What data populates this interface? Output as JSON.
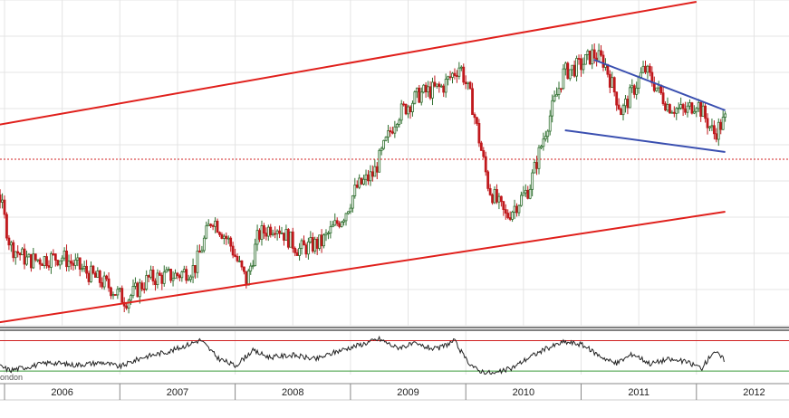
{
  "chart_data": {
    "type": "candlestick",
    "x_labels": [
      "2006",
      "2007",
      "2008",
      "2009",
      "2010",
      "2011",
      "2012"
    ],
    "x_range": [
      2005.5,
      2012.25
    ],
    "grid": true,
    "colors": {
      "up_candle": "#2f6f2f",
      "down_candle": "#c0181c",
      "channel_line": "#e0201c",
      "wedge_line": "#3a4fb0",
      "support_dotted": "#d02020",
      "oscillator": "#222222",
      "osc_upper": "#d02020",
      "osc_lower": "#3a9a3a",
      "grid": "#e4e4e4"
    },
    "price_keypoints": [
      [
        2005.5,
        0.8
      ],
      [
        2005.6,
        0.9
      ],
      [
        2005.75,
        0.84
      ],
      [
        2005.85,
        0.83
      ],
      [
        2005.95,
        0.77
      ],
      [
        2006.05,
        0.62
      ],
      [
        2006.2,
        0.58
      ],
      [
        2006.5,
        0.59
      ],
      [
        2006.75,
        0.54
      ],
      [
        2006.9,
        0.51
      ],
      [
        2007.05,
        0.47
      ],
      [
        2007.25,
        0.53
      ],
      [
        2007.5,
        0.54
      ],
      [
        2007.65,
        0.56
      ],
      [
        2007.8,
        0.7
      ],
      [
        2007.95,
        0.63
      ],
      [
        2008.1,
        0.52
      ],
      [
        2008.2,
        0.65
      ],
      [
        2008.35,
        0.68
      ],
      [
        2008.55,
        0.61
      ],
      [
        2008.75,
        0.63
      ],
      [
        2008.95,
        0.71
      ],
      [
        2009.05,
        0.78
      ],
      [
        2009.2,
        0.82
      ],
      [
        2009.4,
        0.98
      ],
      [
        2009.6,
        1.04
      ],
      [
        2009.8,
        1.06
      ],
      [
        2009.95,
        1.12
      ],
      [
        2010.05,
        1.02
      ],
      [
        2010.2,
        0.78
      ],
      [
        2010.35,
        0.7
      ],
      [
        2010.55,
        0.78
      ],
      [
        2010.7,
        0.95
      ],
      [
        2010.85,
        1.1
      ],
      [
        2011.0,
        1.12
      ],
      [
        2011.1,
        1.15
      ],
      [
        2011.2,
        1.13
      ],
      [
        2011.35,
        0.99
      ],
      [
        2011.55,
        1.11
      ],
      [
        2011.75,
        1.01
      ],
      [
        2011.9,
        0.99
      ],
      [
        2012.0,
        1.02
      ],
      [
        2012.15,
        0.93
      ],
      [
        2012.25,
        0.97
      ]
    ],
    "y_range": [
      0.4,
      1.3
    ],
    "trendlines": [
      {
        "kind": "channel_upper",
        "points": [
          [
            2005.59,
            0.935
          ],
          [
            2012.0,
            1.295
          ]
        ]
      },
      {
        "kind": "channel_lower",
        "points": [
          [
            2005.66,
            0.395
          ],
          [
            2012.25,
            0.715
          ]
        ]
      },
      {
        "kind": "wedge_upper",
        "points": [
          [
            2011.11,
            1.135
          ],
          [
            2012.25,
            0.995
          ]
        ]
      },
      {
        "kind": "wedge_lower",
        "points": [
          [
            2010.86,
            0.94
          ],
          [
            2012.25,
            0.88
          ]
        ]
      }
    ],
    "reference_lines": [
      {
        "kind": "support_dotted",
        "y": 0.86
      }
    ],
    "oscillator": {
      "upper_level": 0.78,
      "lower_level": 0.08,
      "keypoints": [
        [
          2005.5,
          0.82
        ],
        [
          2005.55,
          1.0
        ],
        [
          2005.7,
          0.55
        ],
        [
          2005.9,
          0.25
        ],
        [
          2006.05,
          0.1
        ],
        [
          2006.2,
          0.18
        ],
        [
          2006.4,
          0.28
        ],
        [
          2006.6,
          0.22
        ],
        [
          2006.85,
          0.28
        ],
        [
          2007.0,
          0.18
        ],
        [
          2007.2,
          0.4
        ],
        [
          2007.45,
          0.55
        ],
        [
          2007.6,
          0.7
        ],
        [
          2007.7,
          0.8
        ],
        [
          2007.85,
          0.38
        ],
        [
          2008.0,
          0.2
        ],
        [
          2008.15,
          0.55
        ],
        [
          2008.3,
          0.4
        ],
        [
          2008.5,
          0.45
        ],
        [
          2008.7,
          0.35
        ],
        [
          2008.9,
          0.55
        ],
        [
          2009.1,
          0.7
        ],
        [
          2009.25,
          0.82
        ],
        [
          2009.4,
          0.62
        ],
        [
          2009.55,
          0.7
        ],
        [
          2009.75,
          0.58
        ],
        [
          2009.9,
          0.78
        ],
        [
          2010.0,
          0.35
        ],
        [
          2010.1,
          0.1
        ],
        [
          2010.25,
          0.02
        ],
        [
          2010.4,
          0.15
        ],
        [
          2010.55,
          0.4
        ],
        [
          2010.7,
          0.6
        ],
        [
          2010.85,
          0.75
        ],
        [
          2011.0,
          0.7
        ],
        [
          2011.15,
          0.45
        ],
        [
          2011.3,
          0.25
        ],
        [
          2011.45,
          0.48
        ],
        [
          2011.6,
          0.25
        ],
        [
          2011.75,
          0.35
        ],
        [
          2011.9,
          0.3
        ],
        [
          2012.05,
          0.15
        ],
        [
          2012.15,
          0.55
        ],
        [
          2012.25,
          0.32
        ]
      ]
    },
    "source_fragment": "ondon"
  }
}
